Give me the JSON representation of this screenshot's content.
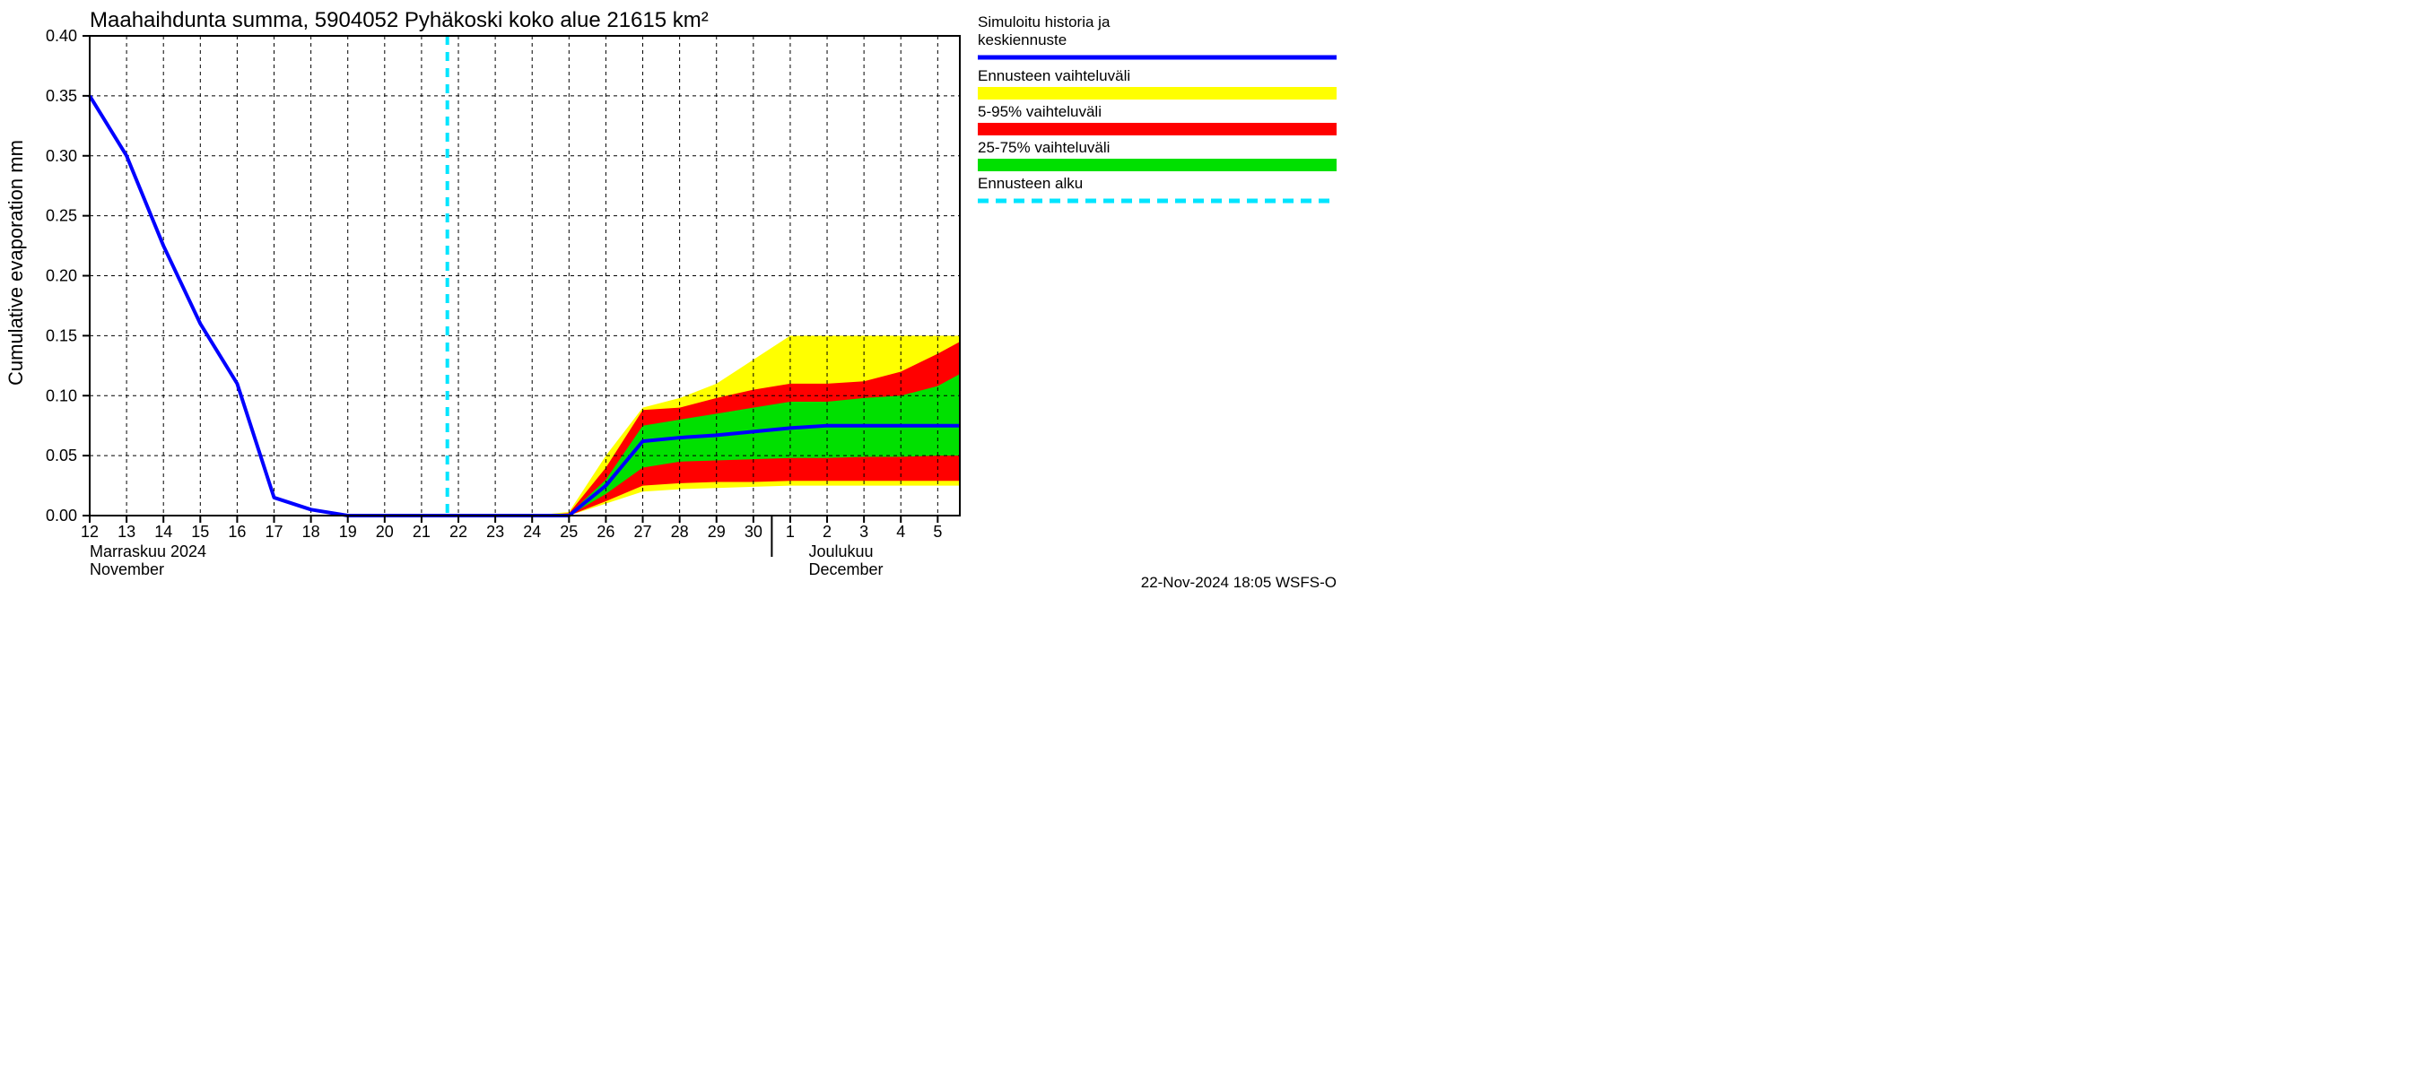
{
  "chart": {
    "type": "line",
    "title": "Maahaihdunta summa, 5904052 Pyhäkoski koko alue 21615 km²",
    "title_fontsize": 24,
    "ylabel": "Cumulative evaporation   mm",
    "ylabel_fontsize": 22,
    "background_color": "#ffffff",
    "grid_color": "#000000",
    "grid_dash": "4 4",
    "axis_color": "#000000",
    "x": {
      "ticks": [
        12,
        13,
        14,
        15,
        16,
        17,
        18,
        19,
        20,
        21,
        22,
        23,
        24,
        25,
        26,
        27,
        28,
        29,
        30,
        1,
        2,
        3,
        4,
        5
      ],
      "label_row1_left": "Marraskuu 2024",
      "label_row2_left": "November",
      "label_row1_right": "Joulukuu",
      "label_row2_right": "December",
      "month_divider_at": 18.5
    },
    "y": {
      "min": 0.0,
      "max": 0.4,
      "ticks": [
        0.0,
        0.05,
        0.1,
        0.15,
        0.2,
        0.25,
        0.3,
        0.35,
        0.4
      ],
      "tick_labels": [
        "0.00",
        "0.05",
        "0.10",
        "0.15",
        "0.20",
        "0.25",
        "0.30",
        "0.35",
        "0.40"
      ]
    },
    "forecast_start_x": 9.7,
    "series": {
      "history_line": {
        "color": "#0000ff",
        "width": 4,
        "points": [
          [
            0,
            0.35
          ],
          [
            1,
            0.3
          ],
          [
            2,
            0.225
          ],
          [
            3,
            0.16
          ],
          [
            4,
            0.11
          ],
          [
            5,
            0.015
          ],
          [
            6,
            0.005
          ],
          [
            7,
            0.0
          ],
          [
            8,
            0.0
          ],
          [
            9,
            0.0
          ],
          [
            10,
            0.0
          ],
          [
            11,
            0.0
          ],
          [
            12,
            0.0
          ],
          [
            13,
            0.0
          ],
          [
            14,
            0.025
          ],
          [
            15,
            0.062
          ],
          [
            16,
            0.065
          ],
          [
            17,
            0.067
          ],
          [
            18,
            0.07
          ],
          [
            19,
            0.073
          ],
          [
            20,
            0.075
          ],
          [
            21,
            0.075
          ],
          [
            22,
            0.075
          ],
          [
            23,
            0.075
          ],
          [
            23.6,
            0.075
          ]
        ]
      },
      "yellow_band": {
        "color": "#ffff00",
        "upper": [
          [
            12,
            0.0
          ],
          [
            13,
            0.003
          ],
          [
            14,
            0.05
          ],
          [
            15,
            0.09
          ],
          [
            16,
            0.098
          ],
          [
            17,
            0.11
          ],
          [
            18,
            0.13
          ],
          [
            19,
            0.15
          ],
          [
            20,
            0.15
          ],
          [
            21,
            0.15
          ],
          [
            22,
            0.15
          ],
          [
            23,
            0.15
          ],
          [
            23.6,
            0.15
          ]
        ],
        "lower": [
          [
            12,
            0.0
          ],
          [
            13,
            0.0
          ],
          [
            14,
            0.01
          ],
          [
            15,
            0.02
          ],
          [
            16,
            0.022
          ],
          [
            17,
            0.023
          ],
          [
            18,
            0.024
          ],
          [
            19,
            0.025
          ],
          [
            20,
            0.025
          ],
          [
            21,
            0.025
          ],
          [
            22,
            0.025
          ],
          [
            23,
            0.025
          ],
          [
            23.6,
            0.025
          ]
        ]
      },
      "red_band": {
        "color": "#ff0000",
        "upper": [
          [
            12,
            0.0
          ],
          [
            13,
            0.002
          ],
          [
            14,
            0.04
          ],
          [
            15,
            0.088
          ],
          [
            16,
            0.09
          ],
          [
            17,
            0.098
          ],
          [
            18,
            0.105
          ],
          [
            19,
            0.11
          ],
          [
            20,
            0.11
          ],
          [
            21,
            0.112
          ],
          [
            22,
            0.12
          ],
          [
            23,
            0.135
          ],
          [
            23.6,
            0.145
          ]
        ],
        "lower": [
          [
            12,
            0.0
          ],
          [
            13,
            0.0
          ],
          [
            14,
            0.012
          ],
          [
            15,
            0.025
          ],
          [
            16,
            0.027
          ],
          [
            17,
            0.028
          ],
          [
            18,
            0.028
          ],
          [
            19,
            0.029
          ],
          [
            20,
            0.029
          ],
          [
            21,
            0.029
          ],
          [
            22,
            0.029
          ],
          [
            23,
            0.029
          ],
          [
            23.6,
            0.029
          ]
        ]
      },
      "green_band": {
        "color": "#00e000",
        "upper": [
          [
            12,
            0.0
          ],
          [
            13,
            0.001
          ],
          [
            14,
            0.03
          ],
          [
            15,
            0.075
          ],
          [
            16,
            0.08
          ],
          [
            17,
            0.085
          ],
          [
            18,
            0.09
          ],
          [
            19,
            0.095
          ],
          [
            20,
            0.095
          ],
          [
            21,
            0.098
          ],
          [
            22,
            0.1
          ],
          [
            23,
            0.108
          ],
          [
            23.6,
            0.118
          ]
        ],
        "lower": [
          [
            12,
            0.0
          ],
          [
            13,
            0.0
          ],
          [
            14,
            0.018
          ],
          [
            15,
            0.04
          ],
          [
            16,
            0.045
          ],
          [
            17,
            0.046
          ],
          [
            18,
            0.047
          ],
          [
            19,
            0.048
          ],
          [
            20,
            0.048
          ],
          [
            21,
            0.049
          ],
          [
            22,
            0.049
          ],
          [
            23,
            0.05
          ],
          [
            23.6,
            0.05
          ]
        ]
      },
      "forecast_start_line": {
        "color": "#00e5ff",
        "width": 4,
        "dash": "10 8"
      }
    },
    "legend": {
      "items": [
        {
          "lines": [
            "Simuloitu historia ja",
            "keskiennuste"
          ],
          "type": "line",
          "color": "#0000ff",
          "width": 5
        },
        {
          "lines": [
            "Ennusteen vaihteluväli"
          ],
          "type": "block",
          "color": "#ffff00"
        },
        {
          "lines": [
            "5-95% vaihteluväli"
          ],
          "type": "block",
          "color": "#ff0000"
        },
        {
          "lines": [
            "25-75% vaihteluväli"
          ],
          "type": "block",
          "color": "#00e000"
        },
        {
          "lines": [
            "Ennusteen alku"
          ],
          "type": "dash",
          "color": "#00e5ff",
          "width": 5
        }
      ]
    },
    "footer": "22-Nov-2024 18:05 WSFS-O"
  }
}
